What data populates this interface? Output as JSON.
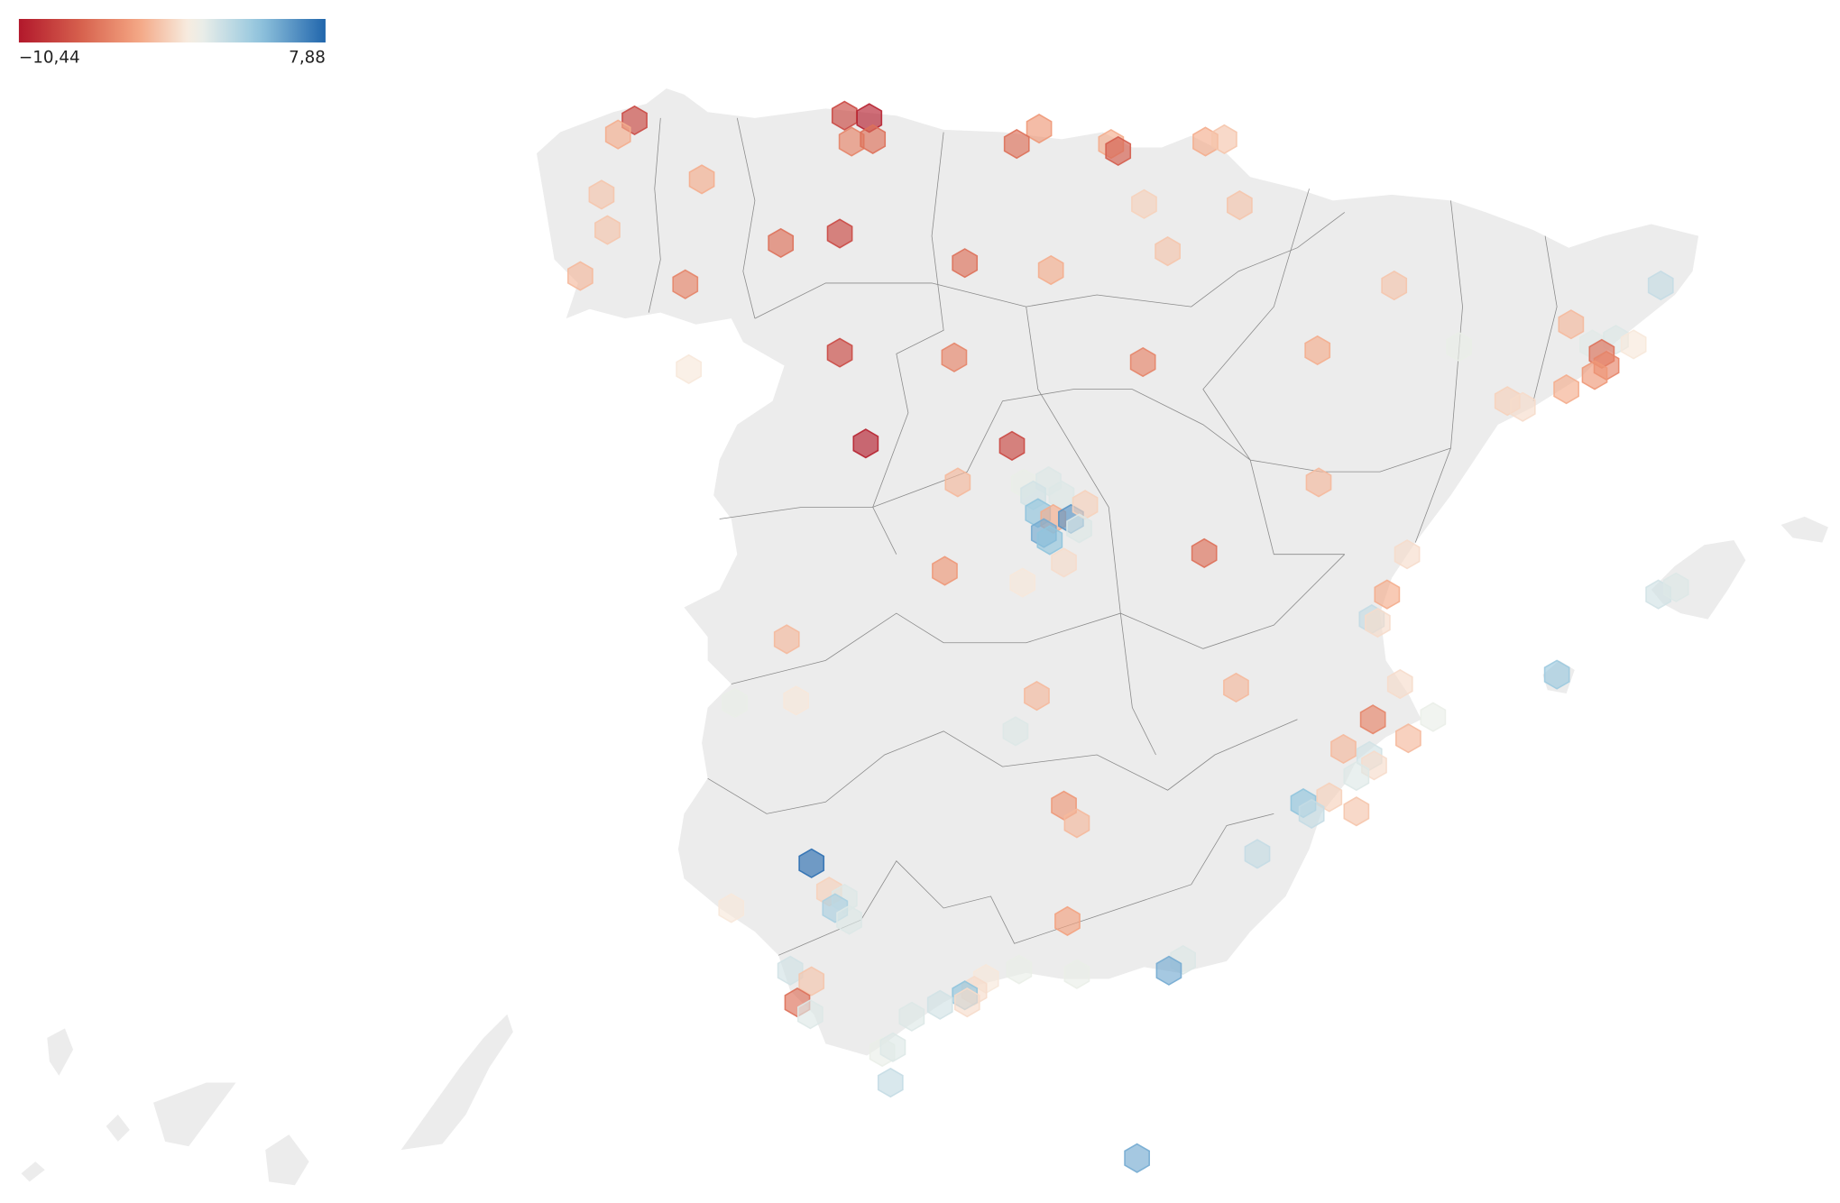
{
  "legend": {
    "min": {
      "value": -10.44,
      "label": "−10,44"
    },
    "max": {
      "value": 7.88,
      "label": "7,88"
    }
  },
  "hexagons": {
    "values": [
      -8,
      -3,
      -8,
      -10,
      -5,
      -6,
      -4,
      -6,
      -3,
      -7,
      -3,
      -2,
      -3,
      -2,
      -2,
      -8,
      -6,
      -1.5,
      -2,
      -2,
      -6,
      -3,
      -2.5,
      -5,
      -2,
      2,
      -2.5,
      -0.5,
      -8,
      -5,
      -5,
      -3,
      0.5,
      0.8,
      1,
      -0.5,
      -6,
      -5,
      -4,
      -3,
      -1.5,
      -1,
      -10,
      -8,
      -2.5,
      -2.5,
      0.5,
      1,
      1.5,
      1,
      4,
      -3,
      6,
      -1.5,
      5,
      4,
      1,
      -1,
      -6,
      -1,
      -4,
      -0.5,
      -3,
      2,
      -1,
      -2.5,
      0.5,
      -0.5,
      -2.5,
      -1,
      0.5,
      -5,
      -2.5,
      -2.5,
      1,
      3.5,
      -2.5,
      1.5,
      -1,
      1,
      -1.5,
      4,
      2,
      -2,
      2,
      -4,
      -2.5,
      1.5,
      1,
      7.5,
      -1.5,
      1,
      3,
      1,
      -0.5,
      -3.5,
      1.5,
      -2,
      -6,
      1,
      0.5,
      0.5,
      -0.5,
      -1,
      4,
      -1,
      1.5,
      1,
      0.5,
      1,
      1,
      5,
      2,
      5
    ]
  }
}
